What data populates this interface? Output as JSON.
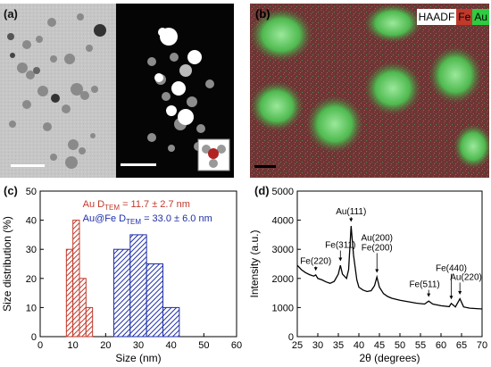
{
  "panels": {
    "a": {
      "label": "(a)"
    },
    "b": {
      "label": "(b)",
      "legend": {
        "haadf": "HAADF",
        "fe": "Fe",
        "au": "Au"
      }
    },
    "c": {
      "label": "(c)"
    },
    "d": {
      "label": "(d)"
    }
  },
  "colors": {
    "fe_red": "#c0392b",
    "au_green": "#2ecc40",
    "au_hist": "#c0392b",
    "aufe_hist": "#1f2fa8"
  },
  "chart_data": [
    {
      "type": "bar",
      "id": "size-distribution",
      "xlabel": "Size (nm)",
      "ylabel": "Size distribution (%)",
      "xlim": [
        0,
        60
      ],
      "ylim": [
        0,
        50
      ],
      "xticks": [
        0,
        10,
        20,
        30,
        40,
        50,
        60
      ],
      "yticks": [
        0,
        10,
        20,
        30,
        40,
        50
      ],
      "series": [
        {
          "name": "Au D",
          "subscript": "TEM",
          "stat": " = 11.7 ± 2.7 nm",
          "bin_width": 2,
          "x": [
            9,
            11,
            13,
            15
          ],
          "values": [
            30,
            40,
            20,
            10
          ]
        },
        {
          "name": "Au@Fe D",
          "subscript": "TEM",
          "stat": " = 33.0 ± 6.0 nm",
          "bin_width": 5,
          "x": [
            25,
            30,
            35,
            40
          ],
          "values": [
            30,
            35,
            25,
            10
          ]
        }
      ]
    },
    {
      "type": "line",
      "id": "xrd",
      "xlabel": "2θ (degrees)",
      "ylabel": "Intensity (a.u.)",
      "xlim": [
        25,
        70
      ],
      "ylim": [
        0,
        5000
      ],
      "xticks": [
        25,
        30,
        35,
        40,
        45,
        50,
        55,
        60,
        65,
        70
      ],
      "yticks": [
        0,
        1000,
        2000,
        3000,
        4000,
        5000
      ],
      "x": [
        25,
        26,
        27,
        28,
        29,
        29.5,
        30,
        31,
        32,
        33,
        34,
        35,
        35.5,
        36,
        37,
        37.5,
        38.1,
        38.7,
        39.5,
        40,
        41,
        42,
        43,
        43.8,
        44.4,
        45,
        46,
        47,
        48,
        50,
        52,
        54,
        56,
        57,
        58,
        60,
        62,
        62.5,
        63.5,
        64.6,
        65.5,
        67,
        70
      ],
      "values": [
        2450,
        2300,
        2200,
        2130,
        2080,
        2120,
        2000,
        1950,
        1880,
        1830,
        1900,
        2150,
        2450,
        2150,
        2000,
        2300,
        3800,
        2800,
        1950,
        1700,
        1600,
        1550,
        1580,
        1750,
        2050,
        1700,
        1480,
        1380,
        1320,
        1250,
        1200,
        1150,
        1120,
        1220,
        1120,
        1060,
        1030,
        1140,
        1020,
        1300,
        1020,
        980,
        950
      ],
      "annotations": [
        {
          "label": "Au(111)",
          "x": 38.1,
          "lines": [
            "Au(111)"
          ]
        },
        {
          "label": "Fe(311)",
          "x": 35.5,
          "lines": [
            "Fe(311)"
          ]
        },
        {
          "label": "Fe(220)",
          "x": 29.5,
          "lines": [
            "Fe(220)"
          ]
        },
        {
          "label": "Au(200) Fe(200)",
          "x": 44.4,
          "lines": [
            "Au(200)",
            "Fe(200)"
          ]
        },
        {
          "label": "Fe(511)",
          "x": 57,
          "lines": [
            "Fe(511)"
          ]
        },
        {
          "label": "Fe(440)",
          "x": 62.5,
          "lines": [
            "Fe(440)"
          ]
        },
        {
          "label": "Au(220)",
          "x": 64.6,
          "lines": [
            "Au(220)"
          ]
        }
      ]
    }
  ]
}
